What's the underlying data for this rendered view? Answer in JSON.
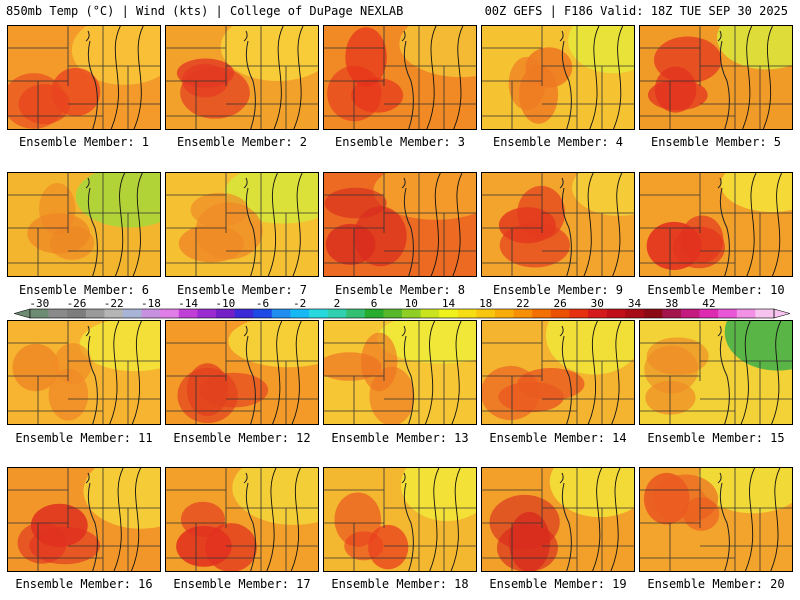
{
  "header": {
    "left": "850mb Temp (°C) | Wind (kts) | College of DuPage NEXLAB",
    "right": "00Z GEFS | F186 Valid: 18Z TUE SEP 30 2025"
  },
  "colorbar": {
    "labels": [
      "-30",
      "-26",
      "-22",
      "-18",
      "-14",
      "-10",
      "-6",
      "-2",
      "2",
      "6",
      "10",
      "14",
      "18",
      "22",
      "26",
      "30",
      "34",
      "38",
      "42"
    ],
    "colors": [
      "#6e8c73",
      "#8a8a8a",
      "#7d7d7d",
      "#9a9a9a",
      "#b5b5b5",
      "#a7b4d6",
      "#c891e0",
      "#e07de6",
      "#c03fd6",
      "#9a2bd0",
      "#7320c9",
      "#3b2bd6",
      "#1d49e6",
      "#1f8ef0",
      "#16b9f5",
      "#28d8df",
      "#2fcfb0",
      "#33c073",
      "#27ac2e",
      "#57b82b",
      "#8fcf25",
      "#c9e41e",
      "#f0f21c",
      "#f7de14",
      "#f8c60f",
      "#f8ac0a",
      "#f79006",
      "#f37104",
      "#ec5002",
      "#e63110",
      "#d41a1a",
      "#c10f1a",
      "#a90b16",
      "#8c0a14",
      "#a3144c",
      "#c4197f",
      "#dd2ab0",
      "#ea57d6",
      "#f290e6",
      "#f7c4f0"
    ]
  },
  "members": [
    {
      "label": "Ensemble Member: 1",
      "base": "#f39a2a",
      "warm": "#e8431e",
      "cool": "#f8c63a"
    },
    {
      "label": "Ensemble Member: 2",
      "base": "#f2a22a",
      "warm": "#e33a22",
      "cool": "#f9d23c"
    },
    {
      "label": "Ensemble Member: 3",
      "base": "#f18a24",
      "warm": "#e5301c",
      "cool": "#f6c236"
    },
    {
      "label": "Ensemble Member: 4",
      "base": "#f5c232",
      "warm": "#ee7a22",
      "cool": "#e6e83a"
    },
    {
      "label": "Ensemble Member: 5",
      "base": "#f09a28",
      "warm": "#e2301e",
      "cool": "#d9e83c"
    },
    {
      "label": "Ensemble Member: 6",
      "base": "#f4b52e",
      "warm": "#ee8424",
      "cool": "#a6d83a"
    },
    {
      "label": "Ensemble Member: 7",
      "base": "#f5c032",
      "warm": "#ef8a26",
      "cool": "#d6e63a"
    },
    {
      "label": "Ensemble Member: 8",
      "base": "#ec6a22",
      "warm": "#d82a1e",
      "cool": "#f4a22c"
    },
    {
      "label": "Ensemble Member: 9",
      "base": "#f3a42c",
      "warm": "#e3381e",
      "cool": "#f4d23a"
    },
    {
      "label": "Ensemble Member: 10",
      "base": "#f3a02a",
      "warm": "#e2321e",
      "cool": "#f3e33a"
    },
    {
      "label": "Ensemble Member: 11",
      "base": "#f6b430",
      "warm": "#f08a26",
      "cool": "#f3e63a"
    },
    {
      "label": "Ensemble Member: 12",
      "base": "#f39a28",
      "warm": "#e3401e",
      "cool": "#f6d838"
    },
    {
      "label": "Ensemble Member: 13",
      "base": "#f6c634",
      "warm": "#ee6e22",
      "cool": "#f0ec3a"
    },
    {
      "label": "Ensemble Member: 14",
      "base": "#f4b430",
      "warm": "#ea5a20",
      "cool": "#f0e63a"
    },
    {
      "label": "Ensemble Member: 15",
      "base": "#f2d236",
      "warm": "#ee8a26",
      "cool": "#3fb04a"
    },
    {
      "label": "Ensemble Member: 16",
      "base": "#f2962a",
      "warm": "#e0301e",
      "cool": "#f6d63a"
    },
    {
      "label": "Ensemble Member: 17",
      "base": "#f2a02a",
      "warm": "#e2301e",
      "cool": "#f5d63a"
    },
    {
      "label": "Ensemble Member: 18",
      "base": "#f4b830",
      "warm": "#e8401e",
      "cool": "#f2e83a"
    },
    {
      "label": "Ensemble Member: 19",
      "base": "#f2a02a",
      "warm": "#d82a1e",
      "cool": "#f3e43a"
    },
    {
      "label": "Ensemble Member: 20",
      "base": "#f3a42c",
      "warm": "#ea5a20",
      "cool": "#f0e43a"
    }
  ]
}
